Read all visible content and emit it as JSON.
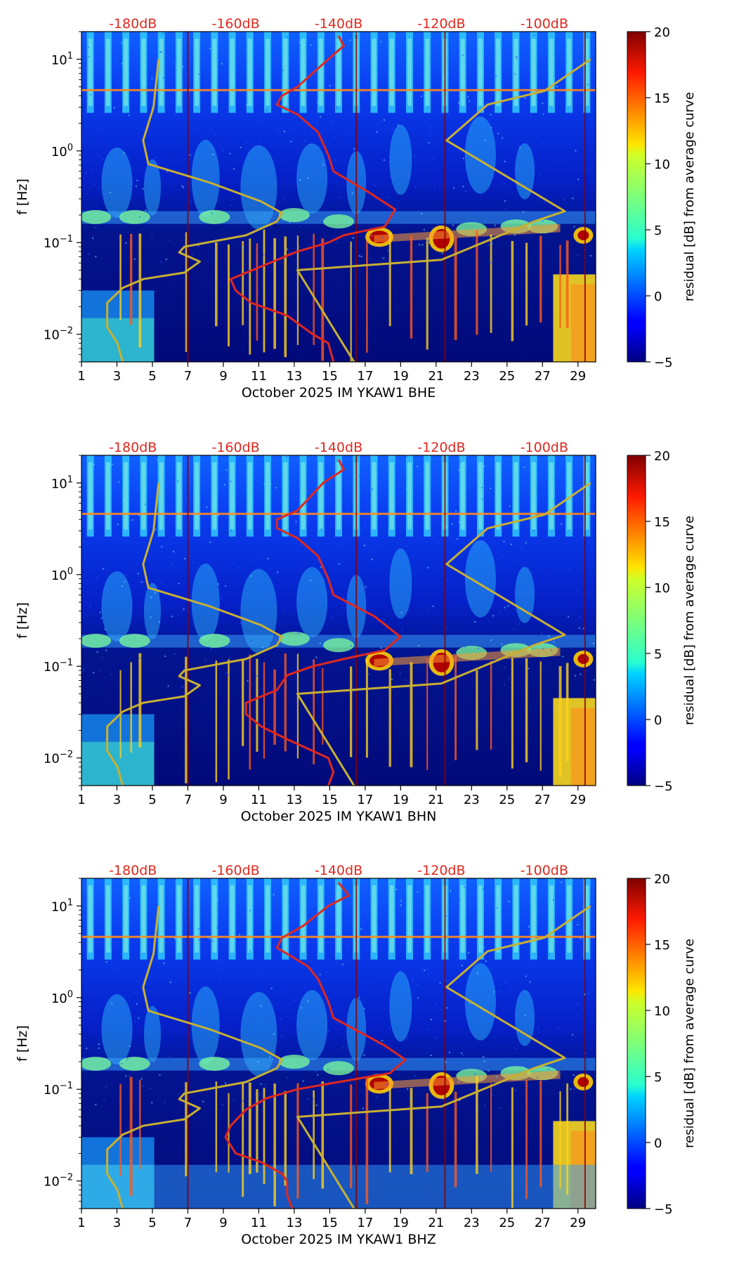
{
  "colors": {
    "noise_curves": "#e0281e",
    "model_curves": "#c8b032",
    "db_labels": "#e0281e",
    "background": "#00007a"
  },
  "chart_data": [
    {
      "type": "heatmap",
      "title": "",
      "xlabel": "October 2025 IM YKAW1  BHE",
      "ylabel": "f [Hz]",
      "x_ticks": [
        "1",
        "3",
        "5",
        "7",
        "9",
        "11",
        "13",
        "15",
        "17",
        "19",
        "21",
        "23",
        "25",
        "27",
        "29"
      ],
      "x_range": [
        1,
        30
      ],
      "y_scale": "log",
      "y_range": [
        0.005,
        20
      ],
      "y_ticks": [
        {
          "value": 0.01,
          "base": "10",
          "exp": "−2"
        },
        {
          "value": 0.1,
          "base": "10",
          "exp": "−1"
        },
        {
          "value": 1,
          "base": "10",
          "exp": "0"
        },
        {
          "value": 10,
          "base": "10",
          "exp": "1"
        }
      ],
      "top_axis_labels": [
        "-180dB",
        "-160dB",
        "-140dB",
        "-120dB",
        "-100dB"
      ],
      "top_axis_values": [
        -180,
        -160,
        -140,
        -120,
        -100
      ],
      "top_axis_range": [
        -190,
        -90
      ],
      "colorbar": {
        "label": "residual [dB] from average curve",
        "range": [
          -5,
          20
        ],
        "ticks": [
          "20",
          "15",
          "10",
          "5",
          "0",
          "−5"
        ],
        "colormap": "jet"
      },
      "series": [
        {
          "name": "",
          "values_axis": "dB",
          "points": [
            [
              -140,
              18
            ],
            [
              -139,
              14
            ],
            [
              -142,
              10
            ],
            [
              -148,
              5
            ],
            [
              -151,
              4
            ],
            [
              -152,
              3.2
            ],
            [
              -148,
              2.5
            ],
            [
              -144,
              1.6
            ],
            [
              -142,
              0.9
            ],
            [
              -141,
              0.6
            ],
            [
              -134,
              0.35
            ],
            [
              -129,
              0.23
            ],
            [
              -131,
              0.15
            ],
            [
              -139,
              0.12
            ],
            [
              -142,
              0.1
            ],
            [
              -148,
              0.08
            ],
            [
              -155,
              0.055
            ],
            [
              -161,
              0.04
            ],
            [
              -160,
              0.03
            ],
            [
              -157,
              0.022
            ],
            [
              -150,
              0.016
            ],
            [
              -145,
              0.01
            ],
            [
              -142,
              0.008
            ],
            [
              -141,
              0.005
            ]
          ]
        },
        {
          "name": "",
          "values_axis": "dB",
          "points": [
            [
              -182,
              0.005
            ],
            [
              -183,
              0.008
            ],
            [
              -185,
              0.012
            ],
            [
              -185,
              0.022
            ],
            [
              -182,
              0.032
            ],
            [
              -178,
              0.04
            ],
            [
              -170,
              0.047
            ],
            [
              -167,
              0.062
            ],
            [
              -171,
              0.078
            ],
            [
              -170,
              0.09
            ],
            [
              -158,
              0.12
            ],
            [
              -152,
              0.17
            ],
            [
              -151,
              0.21
            ],
            [
              -155,
              0.28
            ],
            [
              -165,
              0.45
            ],
            [
              -177,
              0.72
            ],
            [
              -178,
              1.3
            ],
            [
              -176,
              3
            ],
            [
              -175,
              10
            ]
          ]
        },
        {
          "name": "",
          "values_axis": "dB",
          "points": [
            [
              -137,
              0.005
            ],
            [
              -148,
              0.05
            ],
            [
              -120,
              0.065
            ],
            [
              -102,
              0.17
            ],
            [
              -96,
              0.22
            ],
            [
              -119,
              1.3
            ],
            [
              -111,
              3.2
            ],
            [
              -100,
              4.5
            ],
            [
              -91,
              10
            ]
          ]
        }
      ]
    },
    {
      "type": "heatmap",
      "title": "",
      "xlabel": "October 2025 IM YKAW1  BHN",
      "ylabel": "f [Hz]",
      "x_ticks": [
        "1",
        "3",
        "5",
        "7",
        "9",
        "11",
        "13",
        "15",
        "17",
        "19",
        "21",
        "23",
        "25",
        "27",
        "29"
      ],
      "x_range": [
        1,
        30
      ],
      "y_scale": "log",
      "y_range": [
        0.005,
        20
      ],
      "y_ticks": [
        {
          "value": 0.01,
          "base": "10",
          "exp": "−2"
        },
        {
          "value": 0.1,
          "base": "10",
          "exp": "−1"
        },
        {
          "value": 1,
          "base": "10",
          "exp": "0"
        },
        {
          "value": 10,
          "base": "10",
          "exp": "1"
        }
      ],
      "top_axis_labels": [
        "-180dB",
        "-160dB",
        "-140dB",
        "-120dB",
        "-100dB"
      ],
      "top_axis_values": [
        -180,
        -160,
        -140,
        -120,
        -100
      ],
      "top_axis_range": [
        -190,
        -90
      ],
      "colorbar": {
        "label": "residual [dB] from average curve",
        "range": [
          -5,
          20
        ],
        "ticks": [
          "20",
          "15",
          "10",
          "5",
          "0",
          "−5"
        ],
        "colormap": "jet"
      },
      "series": [
        {
          "name": "",
          "values_axis": "dB",
          "points": [
            [
              -140,
              18
            ],
            [
              -139,
              14
            ],
            [
              -143,
              10
            ],
            [
              -148,
              5
            ],
            [
              -152,
              4
            ],
            [
              -152,
              3.2
            ],
            [
              -148,
              2.5
            ],
            [
              -144,
              1.6
            ],
            [
              -142,
              0.9
            ],
            [
              -141,
              0.6
            ],
            [
              -133,
              0.35
            ],
            [
              -128,
              0.21
            ],
            [
              -131,
              0.15
            ],
            [
              -139,
              0.12
            ],
            [
              -145,
              0.1
            ],
            [
              -150,
              0.08
            ],
            [
              -152,
              0.055
            ],
            [
              -158,
              0.04
            ],
            [
              -158,
              0.03
            ],
            [
              -155,
              0.022
            ],
            [
              -150,
              0.016
            ],
            [
              -142,
              0.01
            ],
            [
              -141,
              0.007
            ],
            [
              -142,
              0.005
            ]
          ]
        },
        {
          "name": "",
          "values_axis": "dB",
          "points": [
            [
              -182,
              0.005
            ],
            [
              -183,
              0.008
            ],
            [
              -185,
              0.012
            ],
            [
              -185,
              0.022
            ],
            [
              -182,
              0.032
            ],
            [
              -178,
              0.04
            ],
            [
              -170,
              0.047
            ],
            [
              -167,
              0.062
            ],
            [
              -171,
              0.078
            ],
            [
              -170,
              0.09
            ],
            [
              -158,
              0.12
            ],
            [
              -152,
              0.17
            ],
            [
              -151,
              0.21
            ],
            [
              -155,
              0.28
            ],
            [
              -165,
              0.45
            ],
            [
              -177,
              0.72
            ],
            [
              -178,
              1.3
            ],
            [
              -176,
              3
            ],
            [
              -175,
              10
            ]
          ]
        },
        {
          "name": "",
          "values_axis": "dB",
          "points": [
            [
              -137,
              0.005
            ],
            [
              -148,
              0.05
            ],
            [
              -120,
              0.065
            ],
            [
              -102,
              0.17
            ],
            [
              -96,
              0.22
            ],
            [
              -119,
              1.3
            ],
            [
              -111,
              3.2
            ],
            [
              -100,
              4.5
            ],
            [
              -91,
              10
            ]
          ]
        }
      ]
    },
    {
      "type": "heatmap",
      "title": "",
      "xlabel": "October 2025 IM YKAW1  BHZ",
      "ylabel": "f [Hz]",
      "x_ticks": [
        "1",
        "3",
        "5",
        "7",
        "9",
        "11",
        "13",
        "15",
        "17",
        "19",
        "21",
        "23",
        "25",
        "27",
        "29"
      ],
      "x_range": [
        1,
        30
      ],
      "y_scale": "log",
      "y_range": [
        0.005,
        20
      ],
      "y_ticks": [
        {
          "value": 0.01,
          "base": "10",
          "exp": "−2"
        },
        {
          "value": 0.1,
          "base": "10",
          "exp": "−1"
        },
        {
          "value": 1,
          "base": "10",
          "exp": "0"
        },
        {
          "value": 10,
          "base": "10",
          "exp": "1"
        }
      ],
      "top_axis_labels": [
        "-180dB",
        "-160dB",
        "-140dB",
        "-120dB",
        "-100dB"
      ],
      "top_axis_values": [
        -180,
        -160,
        -140,
        -120,
        -100
      ],
      "top_axis_range": [
        -190,
        -90
      ],
      "colorbar": {
        "label": "residual [dB] from average curve",
        "range": [
          -5,
          20
        ],
        "ticks": [
          "20",
          "15",
          "10",
          "5",
          "0",
          "−5"
        ],
        "colormap": "jet"
      },
      "series": [
        {
          "name": "",
          "values_axis": "dB",
          "points": [
            [
              -140,
              18
            ],
            [
              -138,
              13
            ],
            [
              -142,
              10
            ],
            [
              -147,
              6
            ],
            [
              -151,
              4.5
            ],
            [
              -152,
              3.5
            ],
            [
              -150,
              3
            ],
            [
              -146,
              2.2
            ],
            [
              -144,
              1.6
            ],
            [
              -142,
              0.9
            ],
            [
              -141,
              0.6
            ],
            [
              -131,
              0.3
            ],
            [
              -127,
              0.21
            ],
            [
              -130,
              0.15
            ],
            [
              -140,
              0.12
            ],
            [
              -148,
              0.1
            ],
            [
              -154,
              0.08
            ],
            [
              -158,
              0.06
            ],
            [
              -161,
              0.04
            ],
            [
              -162,
              0.03
            ],
            [
              -160,
              0.02
            ],
            [
              -155,
              0.016
            ],
            [
              -151,
              0.012
            ],
            [
              -150,
              0.01
            ],
            [
              -150,
              0.007
            ],
            [
              -149,
              0.005
            ]
          ]
        },
        {
          "name": "",
          "values_axis": "dB",
          "points": [
            [
              -182,
              0.005
            ],
            [
              -183,
              0.008
            ],
            [
              -185,
              0.012
            ],
            [
              -185,
              0.022
            ],
            [
              -182,
              0.032
            ],
            [
              -178,
              0.04
            ],
            [
              -170,
              0.047
            ],
            [
              -167,
              0.062
            ],
            [
              -171,
              0.078
            ],
            [
              -170,
              0.09
            ],
            [
              -158,
              0.12
            ],
            [
              -152,
              0.17
            ],
            [
              -151,
              0.21
            ],
            [
              -155,
              0.28
            ],
            [
              -165,
              0.45
            ],
            [
              -177,
              0.72
            ],
            [
              -178,
              1.3
            ],
            [
              -176,
              3
            ],
            [
              -175,
              10
            ]
          ]
        },
        {
          "name": "",
          "values_axis": "dB",
          "points": [
            [
              -137,
              0.005
            ],
            [
              -148,
              0.05
            ],
            [
              -120,
              0.065
            ],
            [
              -102,
              0.17
            ],
            [
              -96,
              0.22
            ],
            [
              -119,
              1.3
            ],
            [
              -111,
              3.2
            ],
            [
              -100,
              4.5
            ],
            [
              -91,
              10
            ]
          ]
        }
      ]
    }
  ]
}
